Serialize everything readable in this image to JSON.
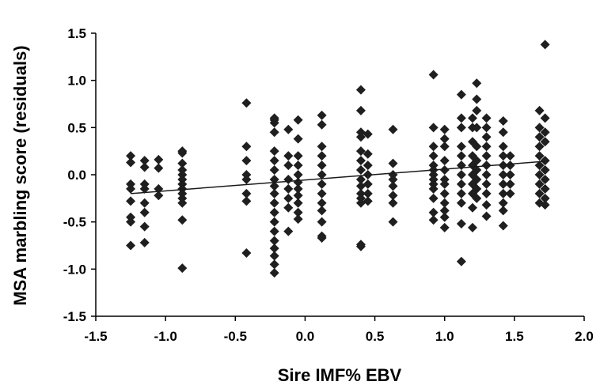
{
  "chart_data": {
    "type": "scatter",
    "title": "",
    "xlabel": "Sire IMF% EBV",
    "ylabel": "MSA marbling score (residuals)",
    "xlim": [
      -1.5,
      2.0
    ],
    "ylim": [
      -1.5,
      1.5
    ],
    "x_ticks": [
      "-1.5",
      "-1.0",
      "-0.5",
      "0.0",
      "0.5",
      "1.0",
      "1.5",
      "2.0"
    ],
    "y_ticks": [
      "1.5",
      "1.0",
      "0.5",
      "0.0",
      "-0.5",
      "-1.0",
      "-1.5"
    ],
    "grid": false,
    "marker": "diamond",
    "marker_color": "#1f1f1f",
    "trendline": {
      "x": [
        -1.25,
        1.7
      ],
      "y": [
        -0.2,
        0.14
      ]
    },
    "series": [
      {
        "points": [
          [
            -1.25,
            0.2
          ],
          [
            -1.25,
            0.13
          ],
          [
            -1.25,
            -0.1
          ],
          [
            -1.25,
            -0.15
          ],
          [
            -1.25,
            -0.28
          ],
          [
            -1.25,
            -0.45
          ],
          [
            -1.25,
            -0.5
          ],
          [
            -1.25,
            -0.75
          ],
          [
            -1.15,
            0.15
          ],
          [
            -1.15,
            0.08
          ],
          [
            -1.15,
            -0.1
          ],
          [
            -1.15,
            -0.15
          ],
          [
            -1.15,
            -0.3
          ],
          [
            -1.15,
            -0.4
          ],
          [
            -1.15,
            -0.55
          ],
          [
            -1.15,
            -0.72
          ],
          [
            -1.05,
            0.16
          ],
          [
            -1.05,
            0.07
          ],
          [
            -1.05,
            -0.15
          ],
          [
            -1.05,
            -0.22
          ],
          [
            -0.88,
            0.25
          ],
          [
            -0.88,
            0.23
          ],
          [
            -0.88,
            0.12
          ],
          [
            -0.88,
            0.05
          ],
          [
            -0.88,
            0.0
          ],
          [
            -0.88,
            -0.05
          ],
          [
            -0.88,
            -0.1
          ],
          [
            -0.88,
            -0.15
          ],
          [
            -0.88,
            -0.2
          ],
          [
            -0.88,
            -0.25
          ],
          [
            -0.88,
            -0.3
          ],
          [
            -0.88,
            -0.48
          ],
          [
            -0.88,
            -0.99
          ],
          [
            -0.42,
            0.76
          ],
          [
            -0.42,
            0.3
          ],
          [
            -0.42,
            0.15
          ],
          [
            -0.42,
            0.0
          ],
          [
            -0.42,
            -0.05
          ],
          [
            -0.42,
            -0.2
          ],
          [
            -0.42,
            -0.28
          ],
          [
            -0.42,
            -0.83
          ],
          [
            -0.22,
            0.6
          ],
          [
            -0.22,
            0.58
          ],
          [
            -0.22,
            0.55
          ],
          [
            -0.22,
            0.45
          ],
          [
            -0.22,
            0.25
          ],
          [
            -0.22,
            0.15
          ],
          [
            -0.22,
            0.05
          ],
          [
            -0.22,
            -0.05
          ],
          [
            -0.22,
            -0.12
          ],
          [
            -0.22,
            -0.2
          ],
          [
            -0.22,
            -0.3
          ],
          [
            -0.22,
            -0.4
          ],
          [
            -0.22,
            -0.5
          ],
          [
            -0.22,
            -0.6
          ],
          [
            -0.22,
            -0.7
          ],
          [
            -0.22,
            -0.78
          ],
          [
            -0.22,
            -0.86
          ],
          [
            -0.22,
            -0.95
          ],
          [
            -0.22,
            -1.04
          ],
          [
            -0.12,
            0.48
          ],
          [
            -0.12,
            0.2
          ],
          [
            -0.12,
            0.1
          ],
          [
            -0.12,
            -0.05
          ],
          [
            -0.12,
            -0.15
          ],
          [
            -0.12,
            -0.25
          ],
          [
            -0.12,
            -0.35
          ],
          [
            -0.12,
            -0.6
          ],
          [
            -0.05,
            0.58
          ],
          [
            -0.05,
            0.38
          ],
          [
            -0.05,
            0.2
          ],
          [
            -0.05,
            0.1
          ],
          [
            -0.05,
            0.0
          ],
          [
            -0.05,
            -0.08
          ],
          [
            -0.05,
            -0.15
          ],
          [
            -0.05,
            -0.22
          ],
          [
            -0.05,
            -0.3
          ],
          [
            -0.05,
            -0.4
          ],
          [
            -0.05,
            -0.47
          ],
          [
            0.12,
            0.63
          ],
          [
            0.12,
            0.53
          ],
          [
            0.12,
            0.3
          ],
          [
            0.12,
            0.2
          ],
          [
            0.12,
            0.1
          ],
          [
            0.12,
            0.0
          ],
          [
            0.12,
            -0.1
          ],
          [
            0.12,
            -0.2
          ],
          [
            0.12,
            -0.3
          ],
          [
            0.12,
            -0.38
          ],
          [
            0.12,
            -0.5
          ],
          [
            0.12,
            -0.65
          ],
          [
            0.12,
            -0.67
          ],
          [
            0.4,
            0.9
          ],
          [
            0.4,
            0.68
          ],
          [
            0.4,
            0.45
          ],
          [
            0.4,
            0.4
          ],
          [
            0.4,
            0.25
          ],
          [
            0.4,
            0.15
          ],
          [
            0.4,
            0.05
          ],
          [
            0.4,
            -0.05
          ],
          [
            0.4,
            -0.12
          ],
          [
            0.4,
            -0.2
          ],
          [
            0.4,
            -0.25
          ],
          [
            0.4,
            -0.3
          ],
          [
            0.4,
            -0.74
          ],
          [
            0.4,
            -0.76
          ],
          [
            0.45,
            0.43
          ],
          [
            0.45,
            0.22
          ],
          [
            0.45,
            0.1
          ],
          [
            0.45,
            0.0
          ],
          [
            0.45,
            -0.1
          ],
          [
            0.45,
            -0.2
          ],
          [
            0.45,
            -0.28
          ],
          [
            0.63,
            0.48
          ],
          [
            0.63,
            0.12
          ],
          [
            0.63,
            0.0
          ],
          [
            0.63,
            -0.05
          ],
          [
            0.63,
            -0.12
          ],
          [
            0.63,
            -0.22
          ],
          [
            0.63,
            -0.3
          ],
          [
            0.63,
            -0.5
          ],
          [
            0.92,
            1.06
          ],
          [
            0.92,
            0.5
          ],
          [
            0.92,
            0.3
          ],
          [
            0.92,
            0.2
          ],
          [
            0.92,
            0.1
          ],
          [
            0.92,
            0.05
          ],
          [
            0.92,
            0.0
          ],
          [
            0.92,
            -0.05
          ],
          [
            0.92,
            -0.1
          ],
          [
            0.92,
            -0.15
          ],
          [
            0.92,
            -0.25
          ],
          [
            0.92,
            -0.4
          ],
          [
            0.92,
            -0.48
          ],
          [
            1.0,
            0.48
          ],
          [
            1.0,
            0.38
          ],
          [
            1.0,
            0.3
          ],
          [
            1.0,
            0.15
          ],
          [
            1.0,
            0.05
          ],
          [
            1.0,
            -0.05
          ],
          [
            1.0,
            -0.1
          ],
          [
            1.0,
            -0.2
          ],
          [
            1.0,
            -0.3
          ],
          [
            1.0,
            -0.38
          ],
          [
            1.0,
            -0.45
          ],
          [
            1.0,
            -0.56
          ],
          [
            1.12,
            0.85
          ],
          [
            1.12,
            0.6
          ],
          [
            1.12,
            0.5
          ],
          [
            1.12,
            0.3
          ],
          [
            1.12,
            0.2
          ],
          [
            1.12,
            0.1
          ],
          [
            1.12,
            0.0
          ],
          [
            1.12,
            -0.1
          ],
          [
            1.12,
            -0.2
          ],
          [
            1.12,
            -0.3
          ],
          [
            1.12,
            -0.52
          ],
          [
            1.12,
            -0.92
          ],
          [
            1.2,
            0.6
          ],
          [
            1.2,
            0.5
          ],
          [
            1.2,
            0.35
          ],
          [
            1.2,
            0.2
          ],
          [
            1.2,
            0.1
          ],
          [
            1.2,
            0.0
          ],
          [
            1.2,
            -0.1
          ],
          [
            1.2,
            -0.2
          ],
          [
            1.2,
            -0.35
          ],
          [
            1.2,
            -0.56
          ],
          [
            1.23,
            0.97
          ],
          [
            1.23,
            0.8
          ],
          [
            1.23,
            0.68
          ],
          [
            1.23,
            0.5
          ],
          [
            1.23,
            0.3
          ],
          [
            1.23,
            0.15
          ],
          [
            1.23,
            0.05
          ],
          [
            1.23,
            -0.05
          ],
          [
            1.23,
            -0.15
          ],
          [
            1.23,
            -0.25
          ],
          [
            1.3,
            0.6
          ],
          [
            1.3,
            0.5
          ],
          [
            1.3,
            0.4
          ],
          [
            1.3,
            0.3
          ],
          [
            1.3,
            0.2
          ],
          [
            1.3,
            0.1
          ],
          [
            1.3,
            0.0
          ],
          [
            1.3,
            -0.1
          ],
          [
            1.3,
            -0.2
          ],
          [
            1.3,
            -0.32
          ],
          [
            1.3,
            -0.44
          ],
          [
            1.42,
            0.57
          ],
          [
            1.42,
            0.45
          ],
          [
            1.42,
            0.3
          ],
          [
            1.42,
            0.2
          ],
          [
            1.42,
            0.1
          ],
          [
            1.42,
            0.0
          ],
          [
            1.42,
            -0.1
          ],
          [
            1.42,
            -0.2
          ],
          [
            1.42,
            -0.3
          ],
          [
            1.42,
            -0.38
          ],
          [
            1.42,
            -0.54
          ],
          [
            1.47,
            0.2
          ],
          [
            1.47,
            0.1
          ],
          [
            1.47,
            0.0
          ],
          [
            1.47,
            -0.1
          ],
          [
            1.47,
            -0.2
          ],
          [
            1.68,
            0.68
          ],
          [
            1.68,
            0.5
          ],
          [
            1.68,
            0.4
          ],
          [
            1.68,
            0.3
          ],
          [
            1.68,
            0.2
          ],
          [
            1.68,
            0.1
          ],
          [
            1.68,
            0.0
          ],
          [
            1.68,
            -0.1
          ],
          [
            1.68,
            -0.2
          ],
          [
            1.68,
            -0.3
          ],
          [
            1.72,
            1.38
          ],
          [
            1.72,
            0.6
          ],
          [
            1.72,
            0.45
          ],
          [
            1.72,
            0.35
          ],
          [
            1.72,
            0.15
          ],
          [
            1.72,
            0.05
          ],
          [
            1.72,
            -0.05
          ],
          [
            1.72,
            -0.15
          ],
          [
            1.72,
            -0.25
          ],
          [
            1.72,
            -0.32
          ]
        ]
      }
    ]
  }
}
